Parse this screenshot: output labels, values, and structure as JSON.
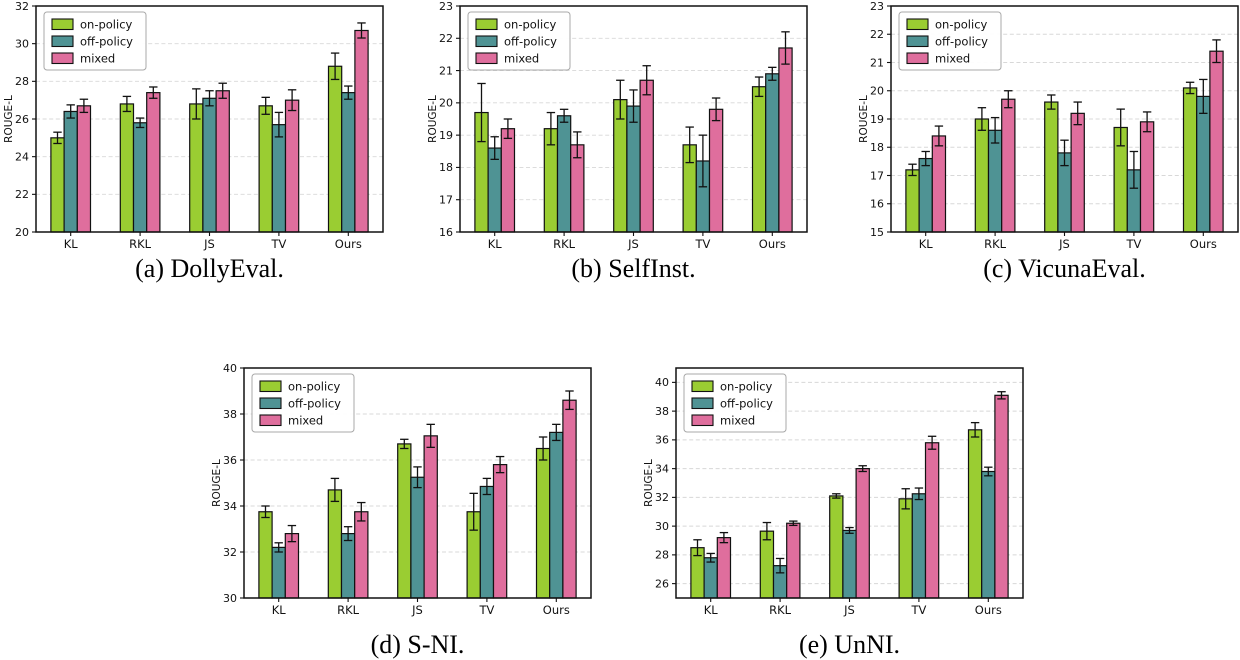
{
  "figure": {
    "ylabel": "ROUGE-L",
    "series_names": [
      "on-policy",
      "off-policy",
      "mixed"
    ],
    "series_colors": {
      "on-policy": "#9ACD32",
      "off-policy": "#4F9394",
      "mixed": "#DF6E9D"
    },
    "bar_edge_color": "#111111",
    "error_bar_color": "#111111",
    "grid_color": "#d8d8d8",
    "background_color": "#ffffff"
  },
  "chart_data": [
    {
      "type": "bar",
      "caption": "(a) DollyEval.",
      "ylabel": "ROUGE-L",
      "categories": [
        "KL",
        "RKL",
        "JS",
        "TV",
        "Ours"
      ],
      "ylim": [
        20,
        32
      ],
      "yticks": [
        20,
        22,
        24,
        26,
        28,
        30,
        32
      ],
      "grid": true,
      "legend_position": "upper-left",
      "series": [
        {
          "name": "on-policy",
          "color": "#9ACD32",
          "values": [
            25.0,
            26.8,
            26.8,
            26.7,
            28.8
          ],
          "errors": [
            0.3,
            0.4,
            0.8,
            0.45,
            0.7
          ]
        },
        {
          "name": "off-policy",
          "color": "#4F9394",
          "values": [
            26.4,
            25.8,
            27.1,
            25.7,
            27.4
          ],
          "errors": [
            0.35,
            0.25,
            0.4,
            0.65,
            0.35
          ]
        },
        {
          "name": "mixed",
          "color": "#DF6E9D",
          "values": [
            26.7,
            27.4,
            27.5,
            27.0,
            30.7
          ],
          "errors": [
            0.35,
            0.3,
            0.4,
            0.55,
            0.4
          ]
        }
      ]
    },
    {
      "type": "bar",
      "caption": "(b) SelfInst.",
      "ylabel": "ROUGE-L",
      "categories": [
        "KL",
        "RKL",
        "JS",
        "TV",
        "Ours"
      ],
      "ylim": [
        16,
        23
      ],
      "yticks": [
        16,
        17,
        18,
        19,
        20,
        21,
        22,
        23
      ],
      "grid": true,
      "legend_position": "upper-left",
      "series": [
        {
          "name": "on-policy",
          "color": "#9ACD32",
          "values": [
            19.7,
            19.2,
            20.1,
            18.7,
            20.5
          ],
          "errors": [
            0.9,
            0.5,
            0.6,
            0.55,
            0.3
          ]
        },
        {
          "name": "off-policy",
          "color": "#4F9394",
          "values": [
            18.6,
            19.6,
            19.9,
            18.2,
            20.9
          ],
          "errors": [
            0.35,
            0.2,
            0.5,
            0.8,
            0.2
          ]
        },
        {
          "name": "mixed",
          "color": "#DF6E9D",
          "values": [
            19.2,
            18.7,
            20.7,
            19.8,
            21.7
          ],
          "errors": [
            0.3,
            0.4,
            0.45,
            0.35,
            0.5
          ]
        }
      ]
    },
    {
      "type": "bar",
      "caption": "(c) VicunaEval.",
      "ylabel": "ROUGE-L",
      "categories": [
        "KL",
        "RKL",
        "JS",
        "TV",
        "Ours"
      ],
      "ylim": [
        15,
        23
      ],
      "yticks": [
        15,
        16,
        17,
        18,
        19,
        20,
        21,
        22,
        23
      ],
      "grid": true,
      "legend_position": "upper-left",
      "series": [
        {
          "name": "on-policy",
          "color": "#9ACD32",
          "values": [
            17.2,
            19.0,
            19.6,
            18.7,
            20.1
          ],
          "errors": [
            0.2,
            0.4,
            0.25,
            0.65,
            0.2
          ]
        },
        {
          "name": "off-policy",
          "color": "#4F9394",
          "values": [
            17.6,
            18.6,
            17.8,
            17.2,
            19.8
          ],
          "errors": [
            0.25,
            0.45,
            0.45,
            0.65,
            0.6
          ]
        },
        {
          "name": "mixed",
          "color": "#DF6E9D",
          "values": [
            18.4,
            19.7,
            19.2,
            18.9,
            21.4
          ],
          "errors": [
            0.35,
            0.3,
            0.4,
            0.35,
            0.4
          ]
        }
      ]
    },
    {
      "type": "bar",
      "caption": "(d) S-NI.",
      "ylabel": "ROUGE-L",
      "categories": [
        "KL",
        "RKL",
        "JS",
        "TV",
        "Ours"
      ],
      "ylim": [
        30,
        40
      ],
      "yticks": [
        30,
        32,
        34,
        36,
        38,
        40
      ],
      "grid": true,
      "legend_position": "upper-left",
      "series": [
        {
          "name": "on-policy",
          "color": "#9ACD32",
          "values": [
            33.75,
            34.7,
            36.7,
            33.75,
            36.5
          ],
          "errors": [
            0.25,
            0.5,
            0.2,
            0.8,
            0.5
          ]
        },
        {
          "name": "off-policy",
          "color": "#4F9394",
          "values": [
            32.2,
            32.8,
            35.25,
            34.85,
            37.2
          ],
          "errors": [
            0.2,
            0.3,
            0.45,
            0.35,
            0.35
          ]
        },
        {
          "name": "mixed",
          "color": "#DF6E9D",
          "values": [
            32.8,
            33.75,
            37.05,
            35.8,
            38.6
          ],
          "errors": [
            0.35,
            0.4,
            0.5,
            0.35,
            0.4
          ]
        }
      ]
    },
    {
      "type": "bar",
      "caption": "(e) UnNI.",
      "ylabel": "ROUGE-L",
      "categories": [
        "KL",
        "RKL",
        "JS",
        "TV",
        "Ours"
      ],
      "ylim": [
        25,
        41
      ],
      "yticks": [
        26,
        28,
        30,
        32,
        34,
        36,
        38,
        40
      ],
      "grid": true,
      "legend_position": "upper-left",
      "series": [
        {
          "name": "on-policy",
          "color": "#9ACD32",
          "values": [
            28.5,
            29.65,
            32.1,
            31.9,
            36.7
          ],
          "errors": [
            0.55,
            0.6,
            0.15,
            0.7,
            0.5
          ]
        },
        {
          "name": "off-policy",
          "color": "#4F9394",
          "values": [
            27.8,
            27.25,
            29.7,
            32.25,
            33.8
          ],
          "errors": [
            0.3,
            0.5,
            0.2,
            0.4,
            0.3
          ]
        },
        {
          "name": "mixed",
          "color": "#DF6E9D",
          "values": [
            29.2,
            30.2,
            34.0,
            35.8,
            39.1
          ],
          "errors": [
            0.35,
            0.15,
            0.2,
            0.45,
            0.25
          ]
        }
      ]
    }
  ]
}
